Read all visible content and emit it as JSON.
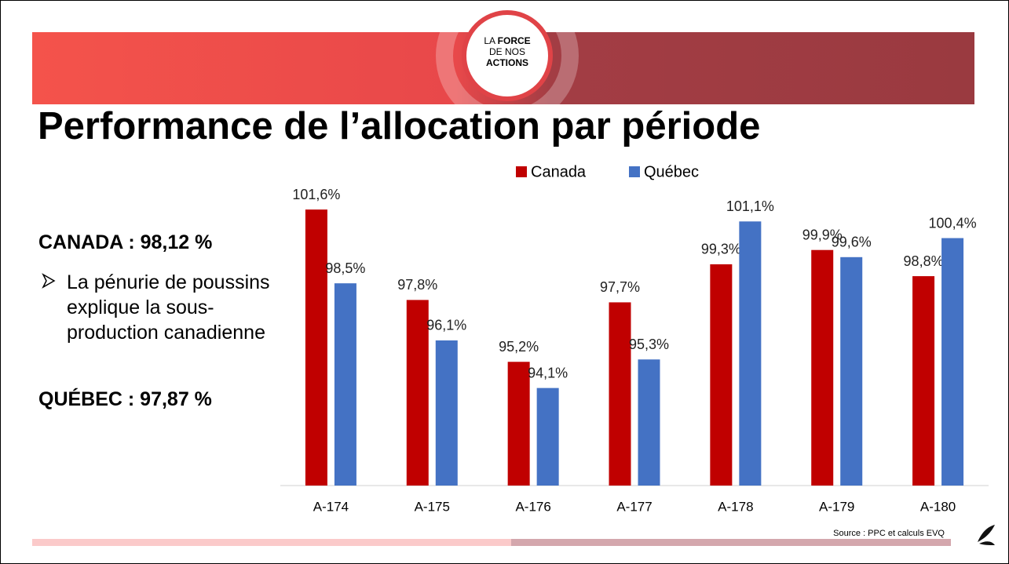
{
  "logo": [
    "LA",
    "FORCE",
    "DE NOS",
    "ACTIONS"
  ],
  "title": "Performance de l’allocation par période",
  "summary": {
    "canada": "CANADA : 98,12 %",
    "bullet": "La pénurie de poussins explique la sous-production canadienne",
    "quebec": "QUÉBEC : 97,87 %"
  },
  "source": "Source : PPC et calculs EVQ",
  "chart_data": {
    "type": "bar",
    "categories": [
      "A-174",
      "A-175",
      "A-176",
      "A-177",
      "A-178",
      "A-179",
      "A-180"
    ],
    "series": [
      {
        "name": "Canada",
        "color": "#c00000",
        "values": [
          101.6,
          97.8,
          95.2,
          97.7,
          99.3,
          99.9,
          98.8
        ],
        "value_labels": [
          "101,6%",
          "97,8%",
          "95,2%",
          "97,7%",
          "99,3%",
          "99,9%",
          "98,8%"
        ]
      },
      {
        "name": "Québec",
        "color": "#4472c4",
        "values": [
          98.5,
          96.1,
          94.1,
          95.3,
          101.1,
          99.6,
          100.4
        ],
        "value_labels": [
          "98,5%",
          "96,1%",
          "94,1%",
          "95,3%",
          "101,1%",
          "99,6%",
          "100,4%"
        ]
      }
    ],
    "ylim": [
      90,
      102
    ],
    "legend": "top"
  }
}
